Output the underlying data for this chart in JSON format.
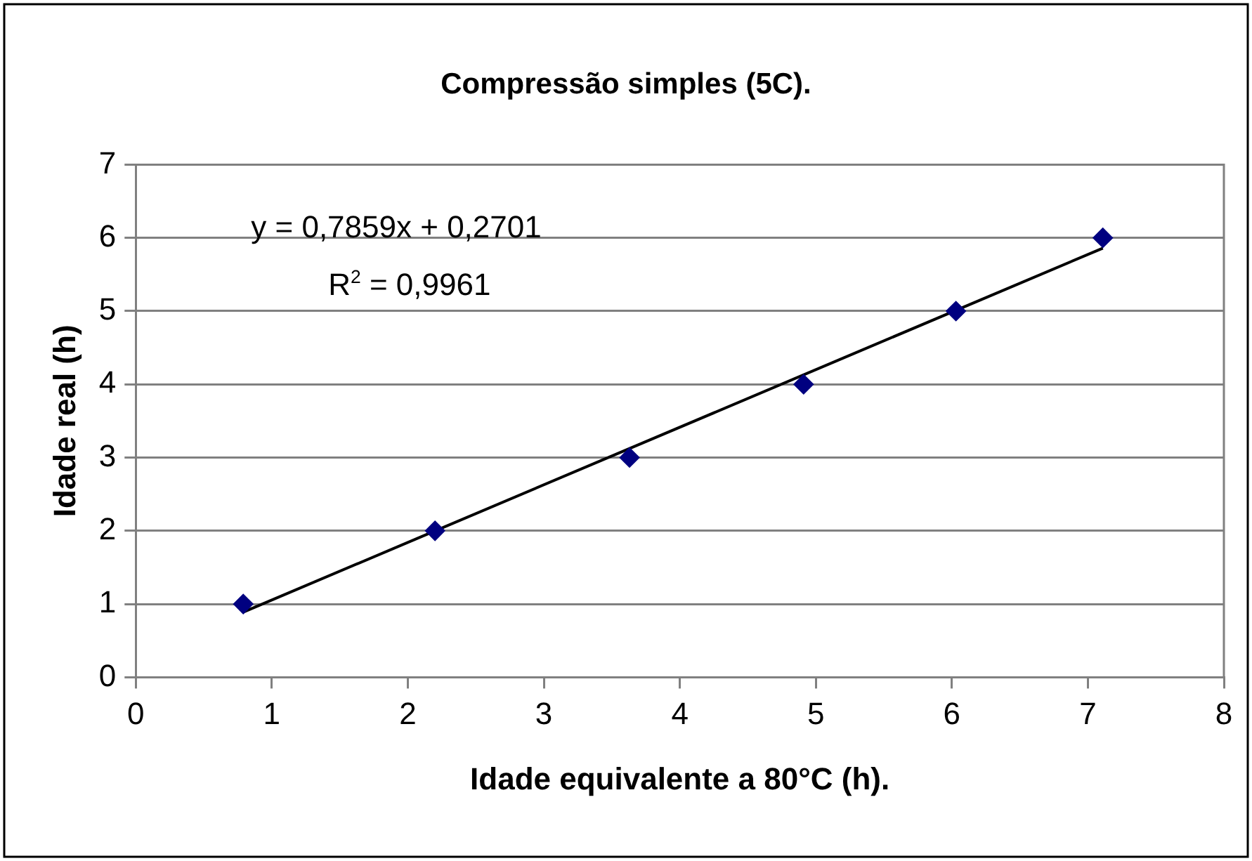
{
  "chart_data": {
    "type": "scatter",
    "title": "Compressão simples (5C).",
    "xlabel": "Idade equivalente a 80°C (h).",
    "ylabel": "Idade real (h)",
    "series": [
      {
        "color": "#000080",
        "marker": "diamond",
        "x": [
          0.79,
          2.2,
          3.63,
          4.91,
          6.03,
          7.11
        ],
        "values": [
          1,
          2,
          3,
          4,
          5,
          6
        ]
      },
      {
        "type": "line",
        "color": "#000000",
        "marker": "none",
        "line_style": "solid",
        "x": [
          0.79,
          7.11
        ],
        "values": [
          0.89,
          5.86
        ]
      }
    ],
    "xlim": [
      0,
      8
    ],
    "xticks": [
      0,
      1,
      2,
      3,
      4,
      5,
      6,
      7,
      8
    ],
    "ylim": [
      0,
      7
    ],
    "yticks": [
      0,
      1,
      2,
      3,
      4,
      5,
      6,
      7
    ],
    "grid": "y",
    "legend": false,
    "annotations": [
      "y = 0,7859x + 0,2701",
      "R$^{2}$ = 0,9961"
    ]
  }
}
